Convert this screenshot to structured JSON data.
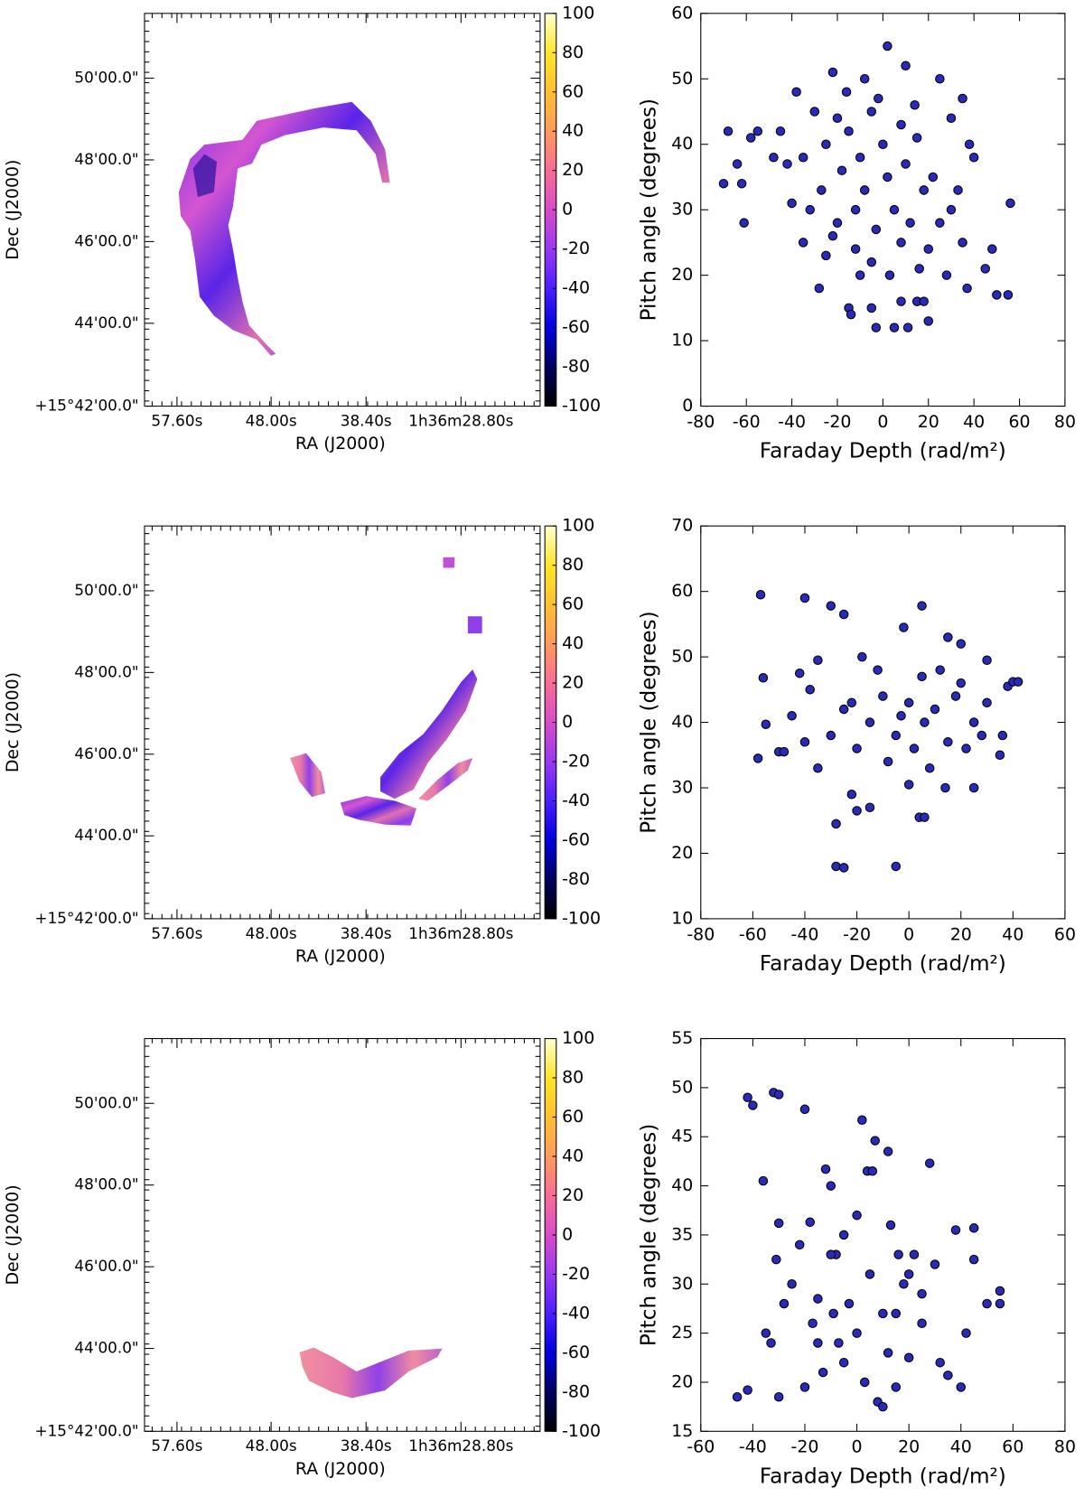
{
  "chart_data": [
    {
      "type": "map",
      "xlabel": "RA (J2000)",
      "ylabel": "Dec (J2000)",
      "xtick_labels": [
        "57.60s",
        "48.00s",
        "38.40s",
        "1h36m28.80s"
      ],
      "ytick_labels": [
        "50'00.0\"",
        "48'00.0\"",
        "46'00.0\"",
        "44'00.0\"",
        "+15°42'00.0\""
      ],
      "clim": [
        -100,
        100
      ],
      "cticks": [
        -100,
        -80,
        -60,
        -40,
        -20,
        0,
        20,
        40,
        60,
        80,
        100
      ]
    },
    {
      "type": "scatter",
      "xlabel": "Faraday Depth (rad/m²)",
      "ylabel": "Pitch angle (degrees)",
      "color": "#2a2ab8",
      "xlim": [
        -80,
        80
      ],
      "xticks": [
        -80,
        -60,
        -40,
        -20,
        0,
        20,
        40,
        60,
        80
      ],
      "ylim": [
        0,
        60
      ],
      "yticks": [
        0,
        10,
        20,
        30,
        40,
        50,
        60
      ],
      "x": [
        -68,
        -64,
        -70,
        -62,
        -61,
        -55,
        -58,
        -38,
        -35,
        -40,
        -28,
        -22,
        -20,
        -15,
        -14,
        -10,
        -8,
        -5,
        -3,
        2,
        5,
        8,
        10,
        11,
        15,
        18,
        20,
        25,
        30,
        35,
        38,
        40,
        37,
        45,
        48,
        50,
        56,
        55,
        35,
        30,
        -45,
        -42,
        -30,
        -25,
        -20,
        -18,
        -15,
        -12,
        -10,
        -8,
        -5,
        -3,
        0,
        2,
        5,
        8,
        10,
        12,
        15,
        18,
        20,
        22,
        -32,
        -27,
        -22,
        -35,
        -5,
        3,
        25,
        -16,
        14,
        -2,
        28,
        33,
        -48,
        -25,
        8,
        -12,
        16
      ],
      "y": [
        42,
        37,
        34,
        34,
        28,
        42,
        41,
        48,
        25,
        31,
        18,
        51,
        28,
        15,
        14,
        20,
        50,
        15,
        12,
        55,
        12,
        16,
        52,
        12,
        16,
        16,
        13,
        50,
        44,
        47,
        40,
        38,
        18,
        21,
        24,
        17,
        31,
        17,
        25,
        30,
        42,
        37,
        45,
        40,
        44,
        36,
        42,
        30,
        38,
        33,
        45,
        27,
        40,
        35,
        30,
        43,
        37,
        28,
        41,
        33,
        24,
        35,
        30,
        33,
        26,
        38,
        22,
        20,
        28,
        48,
        46,
        47,
        20,
        33,
        38,
        23,
        25,
        24,
        21
      ]
    },
    {
      "type": "map",
      "xlabel": "RA (J2000)",
      "ylabel": "Dec (J2000)",
      "xtick_labels": [
        "57.60s",
        "48.00s",
        "38.40s",
        "1h36m28.80s"
      ],
      "ytick_labels": [
        "50'00.0\"",
        "48'00.0\"",
        "46'00.0\"",
        "44'00.0\"",
        "+15°42'00.0\""
      ],
      "clim": [
        -100,
        100
      ],
      "cticks": [
        -100,
        -80,
        -60,
        -40,
        -20,
        0,
        20,
        40,
        60,
        80,
        100
      ]
    },
    {
      "type": "scatter",
      "xlabel": "Faraday Depth (rad/m²)",
      "ylabel": "Pitch angle (degrees)",
      "color": "#2a2ab8",
      "xlim": [
        -80,
        60
      ],
      "xticks": [
        -80,
        -60,
        -40,
        -20,
        0,
        20,
        40,
        60
      ],
      "ylim": [
        10,
        70
      ],
      "yticks": [
        10,
        20,
        30,
        40,
        50,
        60,
        70
      ],
      "x": [
        -57,
        -58,
        -56,
        -55,
        -50,
        -48,
        -45,
        -40,
        -42,
        -38,
        -35,
        -30,
        -28,
        -28,
        -25,
        -25,
        -22,
        -20,
        -15,
        -5,
        -2,
        0,
        5,
        4,
        6,
        15,
        20,
        25,
        30,
        35,
        38,
        40,
        42,
        36,
        30,
        25,
        20,
        15,
        10,
        5,
        0,
        -5,
        -10,
        -15,
        -20,
        -25,
        -30,
        -35,
        -12,
        -8,
        2,
        8,
        12,
        18,
        22,
        -18,
        -3,
        28,
        -40,
        14,
        -22,
        6
      ],
      "y": [
        59.5,
        34.5,
        46.8,
        39.7,
        35.5,
        35.5,
        41,
        59,
        47.5,
        45,
        49.5,
        57.8,
        24.5,
        18,
        17.8,
        56.5,
        29,
        26.5,
        27,
        18,
        54.5,
        30.5,
        57.8,
        25.5,
        25.5,
        53,
        52,
        30,
        49.5,
        35,
        45.5,
        46.2,
        46.2,
        38,
        43,
        40,
        46,
        37,
        42,
        47,
        43,
        38,
        44,
        40,
        36,
        42,
        38,
        33,
        48,
        34,
        36,
        33,
        48,
        44,
        36,
        50,
        41,
        38,
        37,
        30,
        43,
        40
      ]
    },
    {
      "type": "map",
      "xlabel": "RA (J2000)",
      "ylabel": "Dec (J2000)",
      "xtick_labels": [
        "57.60s",
        "48.00s",
        "38.40s",
        "1h36m28.80s"
      ],
      "ytick_labels": [
        "50'00.0\"",
        "48'00.0\"",
        "46'00.0\"",
        "44'00.0\"",
        "+15°42'00.0\""
      ],
      "clim": [
        -100,
        100
      ],
      "cticks": [
        -100,
        -80,
        -60,
        -40,
        -20,
        0,
        20,
        40,
        60,
        80,
        100
      ]
    },
    {
      "type": "scatter",
      "xlabel": "Faraday Depth (rad/m²)",
      "ylabel": "Pitch angle (degrees)",
      "color": "#2a2ab8",
      "xlim": [
        -60,
        80
      ],
      "xticks": [
        -60,
        -40,
        -20,
        0,
        20,
        40,
        60,
        80
      ],
      "ylim": [
        15,
        55
      ],
      "yticks": [
        15,
        20,
        25,
        30,
        35,
        40,
        45,
        50,
        55
      ],
      "x": [
        -46,
        -42,
        -42,
        -40,
        -36,
        -35,
        -33,
        -32,
        -30,
        -30,
        -31,
        -30,
        -28,
        -20,
        -20,
        -18,
        -15,
        -12,
        -10,
        -8,
        -5,
        0,
        2,
        4,
        6,
        7,
        12,
        13,
        8,
        10,
        15,
        20,
        25,
        28,
        35,
        38,
        40,
        42,
        45,
        50,
        55,
        55,
        45,
        30,
        22,
        18,
        15,
        10,
        5,
        0,
        -3,
        -7,
        -10,
        -13,
        -17,
        -22,
        -25,
        -5,
        20,
        32,
        12,
        3,
        -9,
        25,
        16,
        -15
      ],
      "y": [
        18.5,
        19.2,
        49,
        48.2,
        40.5,
        25,
        24,
        49.5,
        49.3,
        36.2,
        32.5,
        18.5,
        28,
        47.8,
        19.5,
        36.3,
        28.5,
        41.7,
        40,
        33,
        22,
        37,
        46.7,
        41.5,
        41.5,
        44.6,
        43.5,
        36,
        18,
        17.5,
        19.5,
        22.5,
        29,
        42.3,
        20.7,
        35.5,
        19.5,
        25,
        35.7,
        28,
        28,
        29.3,
        32.5,
        32,
        33,
        30,
        27,
        27,
        31,
        25,
        28,
        24,
        33,
        21,
        26,
        34,
        30,
        35,
        31,
        22,
        23,
        20,
        27,
        26,
        33,
        24
      ]
    }
  ]
}
